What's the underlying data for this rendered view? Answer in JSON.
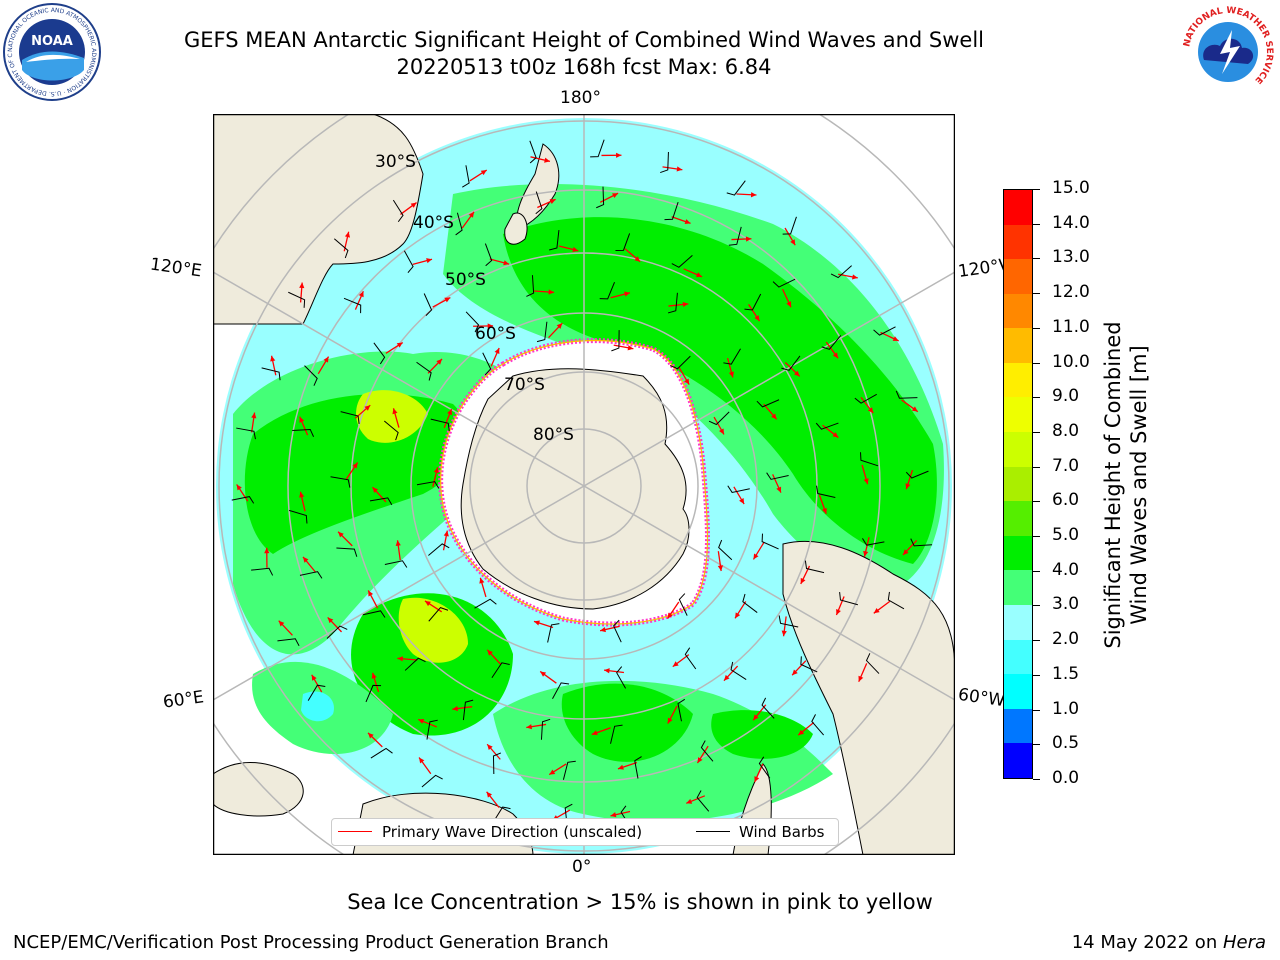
{
  "title": {
    "line1": "GEFS MEAN Antarctic Significant Height of Combined Wind Waves and Swell",
    "line2": "20220513 t00z 168h fcst   Max: 6.84"
  },
  "logos": {
    "left": {
      "name": "noaa-logo",
      "text": "NOAA",
      "ring_text": "NATIONAL OCEANIC AND ATMOSPHERIC ADMINISTRATION · U.S. DEPARTMENT OF COMMERCE"
    },
    "right": {
      "name": "nws-logo",
      "ring_text": "NATIONAL WEATHER SERVICE"
    }
  },
  "map": {
    "projection": "south-polar-stereographic",
    "longitude_labels": {
      "top": "180°",
      "bottom": "0°",
      "upper_left": "120°E",
      "upper_right": "120°W",
      "lower_left": "60°E",
      "lower_right": "60°W"
    },
    "latitude_labels": [
      "30°S",
      "40°S",
      "50°S",
      "60°S",
      "70°S",
      "80°S"
    ],
    "legend": {
      "primary_wave": "Primary Wave Direction (unscaled)",
      "wind_barbs": "Wind Barbs",
      "primary_wave_color": "#ff0000",
      "wind_barbs_color": "#000000"
    },
    "land_color": "#efebdc",
    "ice_color": "#ffffff"
  },
  "colorbar": {
    "label_line1": "Significant Height of Combined",
    "label_line2": "Wind Waves and Swell [m]",
    "ticks": [
      "15.0",
      "14.0",
      "13.0",
      "12.0",
      "11.0",
      "10.0",
      "9.0",
      "8.0",
      "7.0",
      "6.0",
      "5.0",
      "4.0",
      "3.0",
      "2.0",
      "1.5",
      "1.0",
      "0.5",
      "0.0"
    ],
    "colors": [
      "#0000ff",
      "#0077ff",
      "#00ffff",
      "#44ffff",
      "#99ffff",
      "#44ff77",
      "#00ee00",
      "#55ee00",
      "#aaee00",
      "#ccff00",
      "#eeff00",
      "#ffee00",
      "#ffbb00",
      "#ff8800",
      "#ff6600",
      "#ff3300",
      "#ff0000"
    ]
  },
  "caption": "Sea Ice Concentration > 15% is shown in pink to yellow",
  "footer": {
    "left": "NCEP/EMC/Verification Post Processing Product Generation Branch",
    "right_date": "14 May 2022 on ",
    "right_host": "Hera"
  }
}
